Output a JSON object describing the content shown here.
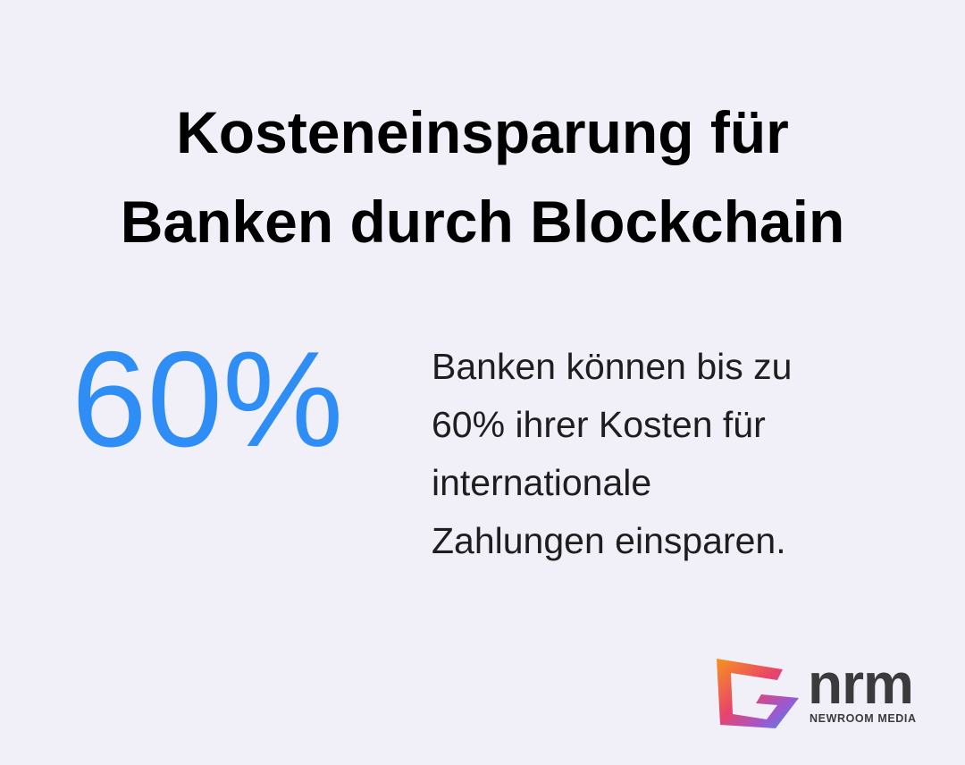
{
  "title": [
    "Kosteneinsparung für",
    "Banken durch Blockchain"
  ],
  "stat": "60%",
  "description": [
    "Banken können bis zu",
    "60% ihrer Kosten für",
    "internationale",
    "Zahlungen einsparen."
  ],
  "logo": {
    "name": "nrm",
    "subtitle": "NEWROOM MEDIA"
  }
}
